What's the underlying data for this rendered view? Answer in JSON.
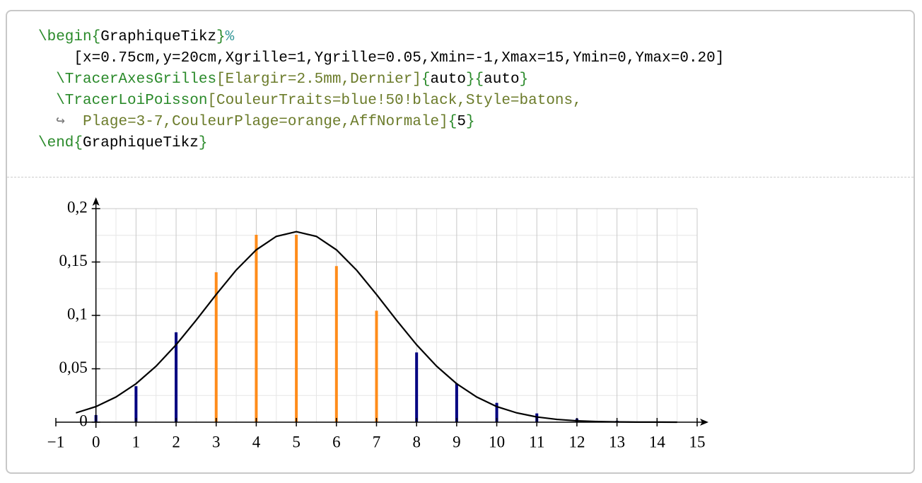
{
  "code": {
    "lines": [
      [
        {
          "text": "\\begin{",
          "color": "#2a8a2a"
        },
        {
          "text": "GraphiqueTikz",
          "color": "#000000"
        },
        {
          "text": "}",
          "color": "#2a8a2a"
        },
        {
          "text": "%",
          "color": "#3a9a9a"
        }
      ],
      [
        {
          "text": "    [x=0.75cm,y=20cm,Xgrille=1,Ygrille=0.05,Xmin=-1,Xmax=15,Ymin=0,Ymax=0.20]",
          "color": "#000000"
        }
      ],
      [
        {
          "text": "  \\TracerAxesGrilles",
          "color": "#2a8a2a"
        },
        {
          "text": "[Elargir=2.5mm,Dernier]",
          "color": "#6b7b2a"
        },
        {
          "text": "{",
          "color": "#2a8a2a"
        },
        {
          "text": "auto",
          "color": "#000000"
        },
        {
          "text": "}{",
          "color": "#2a8a2a"
        },
        {
          "text": "auto",
          "color": "#000000"
        },
        {
          "text": "}",
          "color": "#2a8a2a"
        }
      ],
      [
        {
          "text": "  \\TracerLoiPoisson",
          "color": "#2a8a2a"
        },
        {
          "text": "[CouleurTraits=blue!50!black,Style=batons,",
          "color": "#6b7b2a"
        }
      ],
      [
        {
          "text": "  ↪  ",
          "color": "#777777"
        },
        {
          "text": "Plage=3-7,CouleurPlage=orange,AffNormale]",
          "color": "#6b7b2a"
        },
        {
          "text": "{",
          "color": "#2a8a2a"
        },
        {
          "text": "5",
          "color": "#000000"
        },
        {
          "text": "}",
          "color": "#2a8a2a"
        }
      ],
      [
        {
          "text": "\\end{",
          "color": "#2a8a2a"
        },
        {
          "text": "GraphiqueTikz",
          "color": "#000000"
        },
        {
          "text": "}",
          "color": "#2a8a2a"
        }
      ]
    ]
  },
  "chart_data": {
    "type": "stem",
    "x": [
      0,
      1,
      2,
      3,
      4,
      5,
      6,
      7,
      8,
      9,
      10,
      11,
      12,
      13,
      14
    ],
    "series": [
      {
        "values": [
          0.0067,
          0.0337,
          0.0842,
          0.1404,
          0.1755,
          0.1755,
          0.1462,
          0.1044,
          0.0653,
          0.0363,
          0.0181,
          0.0082,
          0.0034,
          0.0013,
          0.0005
        ],
        "colors": [
          "#000080",
          "#000080",
          "#000080",
          "#ff8c1a",
          "#ff8c1a",
          "#ff8c1a",
          "#ff8c1a",
          "#ff8c1a",
          "#000080",
          "#000080",
          "#000080",
          "#000080",
          "#000080",
          "#000080",
          "#000080"
        ]
      }
    ],
    "curve": {
      "color": "#000000",
      "x": [
        -0.5,
        0,
        0.5,
        1,
        1.5,
        2,
        2.5,
        3,
        3.5,
        4,
        4.5,
        5,
        5.5,
        6,
        6.5,
        7,
        7.5,
        8,
        8.5,
        9,
        9.5,
        10,
        10.5,
        11,
        11.5,
        12,
        12.5,
        13,
        13.5,
        14,
        14.5
      ],
      "y": [
        0.0087,
        0.0146,
        0.0236,
        0.036,
        0.0524,
        0.0725,
        0.0955,
        0.1196,
        0.1425,
        0.1614,
        0.174,
        0.1784,
        0.174,
        0.1614,
        0.1425,
        0.1196,
        0.0955,
        0.0725,
        0.0524,
        0.036,
        0.0236,
        0.0146,
        0.0087,
        0.0049,
        0.0026,
        0.0013,
        0.0006,
        0.0003,
        0.0001,
        0.0001,
        0
      ]
    },
    "xlim": [
      -1,
      15
    ],
    "ylim": [
      0,
      0.2
    ],
    "xticks": [
      {
        "value": -1,
        "label": "−1"
      },
      0,
      1,
      2,
      3,
      4,
      5,
      6,
      7,
      8,
      9,
      10,
      11,
      12,
      13,
      14,
      15
    ],
    "yticks": [
      0,
      {
        "value": 0.05,
        "label": "0,05"
      },
      {
        "value": 0.1,
        "label": "0,1"
      },
      {
        "value": 0.15,
        "label": "0,15"
      },
      {
        "value": 0.2,
        "label": "0,2"
      }
    ],
    "grid": true
  }
}
